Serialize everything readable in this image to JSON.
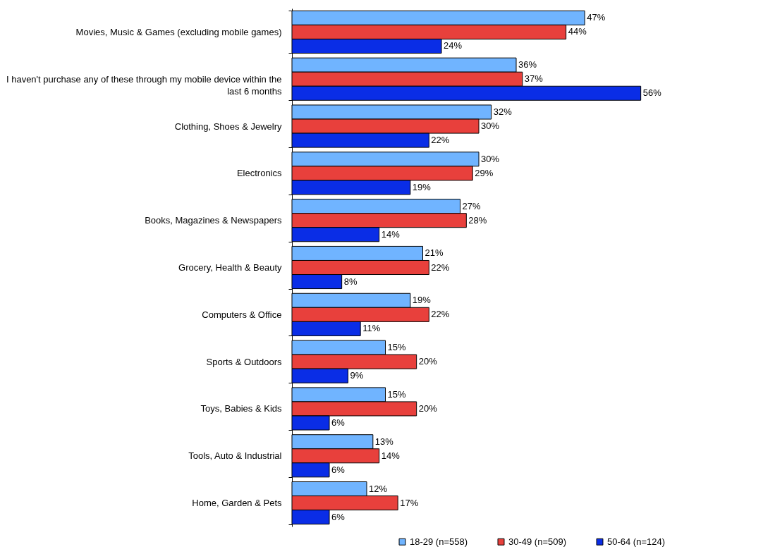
{
  "chart_data": {
    "type": "bar",
    "orientation": "horizontal",
    "categories": [
      "Movies, Music & Games (excluding mobile games)",
      "I haven't purchase any of these through my mobile device within the last 6 months",
      "Clothing, Shoes & Jewelry",
      "Electronics",
      "Books, Magazines & Newspapers",
      "Grocery, Health & Beauty",
      "Computers & Office",
      "Sports & Outdoors",
      "Toys, Babies & Kids",
      "Tools, Auto & Industrial",
      "Home, Garden & Pets"
    ],
    "series": [
      {
        "name": "18-29 (n=558)",
        "color": "#70b4ff",
        "values": [
          47,
          36,
          32,
          30,
          27,
          21,
          19,
          15,
          15,
          13,
          12
        ],
        "value_labels": [
          "47%",
          "36%",
          "32%",
          "30%",
          "27%",
          "21%",
          "19%",
          "15%",
          "15%",
          "13%",
          "12%"
        ]
      },
      {
        "name": "30-49 (n=509)",
        "color": "#e8403c",
        "values": [
          44,
          37,
          30,
          29,
          28,
          22,
          22,
          20,
          20,
          14,
          17
        ],
        "value_labels": [
          "44%",
          "37%",
          "30%",
          "29%",
          "28%",
          "22%",
          "22%",
          "20%",
          "20%",
          "14%",
          "17%"
        ]
      },
      {
        "name": "50-64 (n=124)",
        "color": "#0a2de6",
        "values": [
          24,
          56,
          22,
          19,
          14,
          8,
          11,
          9,
          6,
          6,
          6
        ],
        "value_labels": [
          "24%",
          "56%",
          "22%",
          "19%",
          "14%",
          "8%",
          "11%",
          "9%",
          "6%",
          "6%",
          "6%"
        ]
      }
    ],
    "legend": "bottom right"
  }
}
